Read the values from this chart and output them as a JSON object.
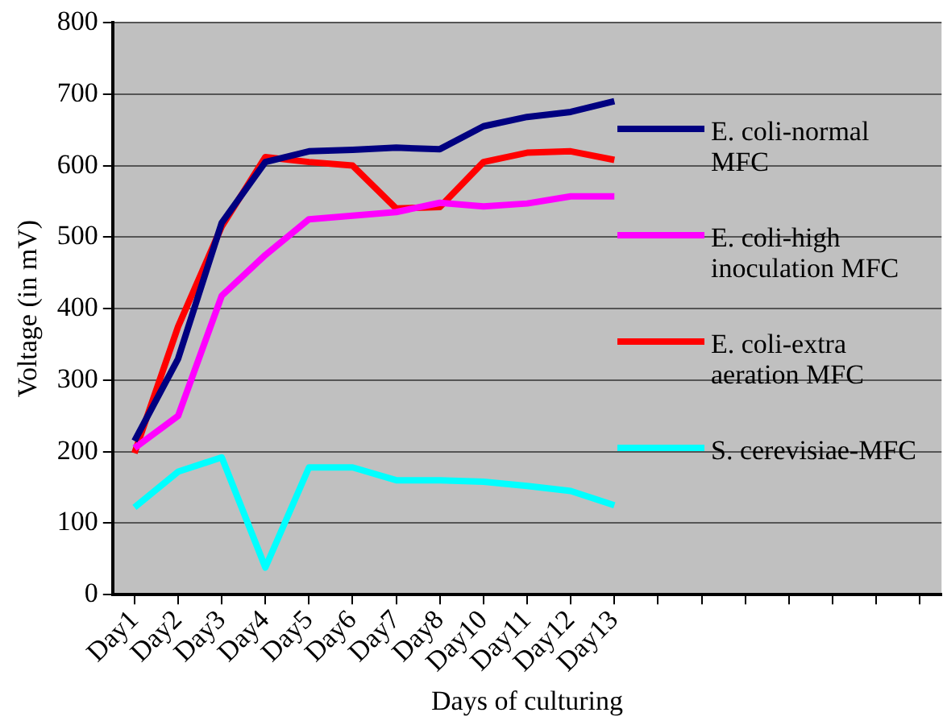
{
  "chart_data": {
    "type": "line",
    "xlabel": "Days of culturing",
    "ylabel": "Voltage (in mV)",
    "categories": [
      "Day1",
      "Day2",
      "Day3",
      "Day4",
      "Day5",
      "Day6",
      "Day7",
      "Day8",
      "Day10",
      "Day11",
      "Day12",
      "Day13",
      null,
      null,
      null,
      null,
      null,
      null,
      null
    ],
    "series": [
      {
        "name": "E. coli-normal MFC",
        "color": "#000080",
        "values": [
          215,
          330,
          520,
          605,
          620,
          622,
          625,
          623,
          655,
          668,
          675,
          690,
          null,
          null,
          null,
          null,
          null,
          null,
          null
        ]
      },
      {
        "name": "E. coli-high inoculation MFC",
        "color": "#ff00ff",
        "values": [
          205,
          250,
          418,
          475,
          525,
          530,
          535,
          548,
          543,
          547,
          557,
          557,
          null,
          null,
          null,
          null,
          null,
          null,
          null
        ]
      },
      {
        "name": "E. coli-extra aeration MFC",
        "color": "#ff0000",
        "values": [
          198,
          375,
          515,
          612,
          605,
          600,
          540,
          542,
          605,
          618,
          620,
          608,
          null,
          null,
          null,
          null,
          null,
          null,
          null
        ]
      },
      {
        "name": "S. cerevisiae-MFC",
        "color": "#00ffff",
        "values": [
          122,
          172,
          192,
          38,
          178,
          178,
          160,
          160,
          158,
          152,
          145,
          125,
          null,
          null,
          null,
          null,
          null,
          null,
          null
        ]
      }
    ],
    "ylim": [
      0,
      800
    ],
    "yticks": [
      0,
      100,
      200,
      300,
      400,
      500,
      600,
      700,
      800
    ],
    "grid": "y",
    "legend": "right",
    "marker": "none",
    "line_style": "solid"
  }
}
